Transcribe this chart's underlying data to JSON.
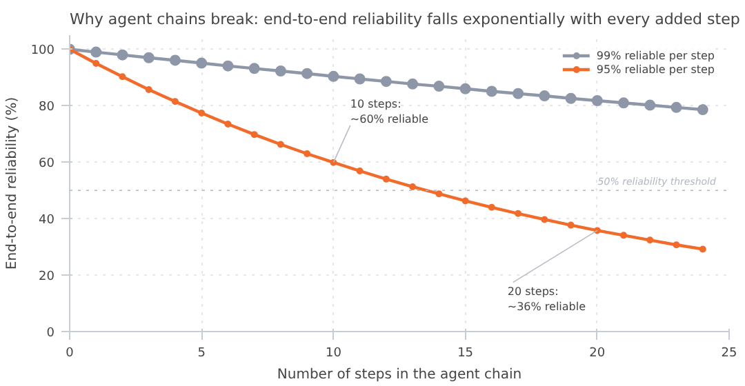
{
  "chart_data": {
    "type": "line",
    "title": "Why agent chains break: end-to-end reliability falls exponentially with every added step",
    "xlabel": "Number of steps in the agent chain",
    "ylabel": "End-to-end reliability (%)",
    "x": [
      0,
      1,
      2,
      3,
      4,
      5,
      6,
      7,
      8,
      9,
      10,
      11,
      12,
      13,
      14,
      15,
      16,
      17,
      18,
      19,
      20,
      21,
      22,
      23,
      24
    ],
    "series": [
      {
        "name": "99% reliable per step",
        "color": "#8e97a8",
        "values": [
          100,
          99,
          98,
          97,
          96.1,
          95.1,
          94.1,
          93.2,
          92.3,
          91.4,
          90.4,
          89.5,
          88.6,
          87.7,
          86.9,
          86.0,
          85.1,
          84.3,
          83.5,
          82.6,
          81.8,
          81.0,
          80.2,
          79.4,
          78.6
        ]
      },
      {
        "name": "95% reliable per step",
        "color": "#f26b2a",
        "values": [
          100,
          95,
          90.3,
          85.7,
          81.5,
          77.4,
          73.5,
          69.8,
          66.3,
          63.0,
          59.9,
          56.9,
          54.0,
          51.3,
          48.8,
          46.3,
          44.0,
          41.8,
          39.7,
          37.7,
          35.8,
          34.1,
          32.4,
          30.7,
          29.2
        ]
      }
    ],
    "xlim": [
      0,
      25
    ],
    "ylim": [
      0,
      105
    ],
    "xticks": [
      0,
      5,
      10,
      15,
      20,
      25
    ],
    "yticks": [
      0,
      20,
      40,
      60,
      80,
      100
    ],
    "ref_lines": [
      {
        "axis": "y",
        "value": 50,
        "label": "50% reliability threshold",
        "color": "#b0b6c2",
        "line_style": "dotted"
      }
    ],
    "annotations": [
      {
        "text": "10 steps:\n~60% reliable",
        "x": 10,
        "y": 59.9
      },
      {
        "text": "20 steps:\n~36% reliable",
        "x": 20,
        "y": 35.8
      }
    ],
    "grid": true,
    "legend": "top right",
    "marker": "circle",
    "line_style": "solid"
  }
}
